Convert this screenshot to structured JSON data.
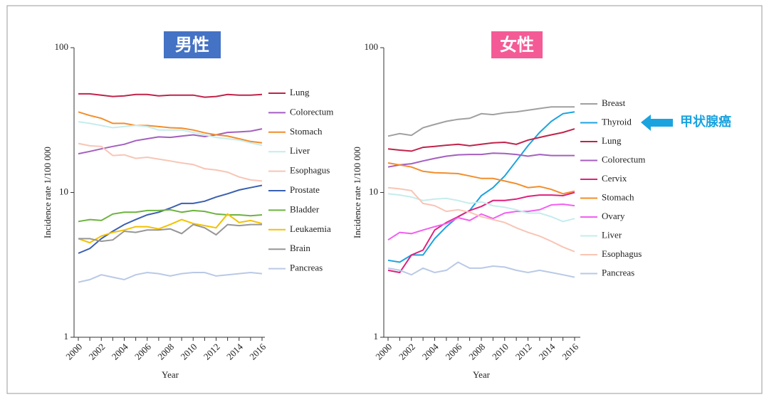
{
  "chart_data": [
    {
      "type": "line",
      "title": "男性",
      "title_color": "#4472c4",
      "log_scale": true,
      "y_label": "Incidence rate 1/100 000",
      "x_label": "Year",
      "x": [
        2000,
        2001,
        2002,
        2003,
        2004,
        2005,
        2006,
        2007,
        2008,
        2009,
        2010,
        2011,
        2012,
        2013,
        2014,
        2015,
        2016
      ],
      "xlim": [
        2000,
        2016
      ],
      "xticks": [
        2000,
        2002,
        2004,
        2006,
        2008,
        2010,
        2012,
        2014,
        2016
      ],
      "ylim": [
        1,
        100
      ],
      "yticks": [
        1,
        10,
        100
      ],
      "series": [
        {
          "name": "Lung",
          "color": "#c0234a",
          "values": [
            48,
            48,
            47,
            46,
            46.5,
            47.5,
            47.5,
            46.5,
            47,
            47,
            47,
            45.5,
            46,
            47.5,
            47,
            47,
            47.5
          ]
        },
        {
          "name": "Colorectum",
          "color": "#a45fbf",
          "values": [
            18.5,
            19.2,
            20,
            20.8,
            21.5,
            22.8,
            23.5,
            24.2,
            24,
            24.5,
            25,
            24.3,
            25,
            26,
            26.2,
            26.5,
            27.5
          ]
        },
        {
          "name": "Stomach",
          "color": "#f28e2b",
          "values": [
            36,
            34,
            32.5,
            30,
            30,
            29,
            29,
            28.5,
            28,
            27.8,
            27,
            25.8,
            25,
            24.5,
            23.5,
            22.5,
            22
          ]
        },
        {
          "name": "Liver",
          "color": "#c6ecec",
          "values": [
            30.8,
            30,
            29,
            28,
            28.5,
            29,
            28.5,
            27,
            27,
            27,
            26,
            25,
            24,
            23.5,
            23,
            22,
            21.2
          ]
        },
        {
          "name": "Esophagus",
          "color": "#f8c5b5",
          "values": [
            21.8,
            21,
            20.8,
            18,
            18.2,
            17.2,
            17.5,
            17,
            16.5,
            16,
            15.6,
            14.6,
            14.3,
            13.8,
            12.8,
            12.2,
            12
          ]
        },
        {
          "name": "Prostate",
          "color": "#3a5fb0",
          "values": [
            3.8,
            4.1,
            4.8,
            5.4,
            6,
            6.5,
            7,
            7.3,
            7.8,
            8.4,
            8.4,
            8.7,
            9.3,
            9.8,
            10.4,
            10.8,
            11.2
          ]
        },
        {
          "name": "Bladder",
          "color": "#6db33f",
          "values": [
            6.3,
            6.5,
            6.4,
            7.1,
            7.3,
            7.3,
            7.5,
            7.5,
            7.6,
            7.3,
            7.5,
            7.4,
            7.1,
            7,
            7,
            6.9,
            7
          ]
        },
        {
          "name": "Leukaemia",
          "color": "#f2c200",
          "values": [
            4.8,
            4.5,
            5,
            5.3,
            5.5,
            5.8,
            5.8,
            5.6,
            6,
            6.5,
            6.1,
            5.9,
            5.7,
            7.1,
            6.2,
            6.4,
            6.1
          ]
        },
        {
          "name": "Brain",
          "color": "#969696",
          "values": [
            4.8,
            4.8,
            4.6,
            4.7,
            5.4,
            5.3,
            5.5,
            5.5,
            5.6,
            5.2,
            6,
            5.7,
            5.1,
            6,
            5.9,
            6,
            6
          ]
        },
        {
          "name": "Pancreas",
          "color": "#b9c9e6",
          "values": [
            2.4,
            2.5,
            2.7,
            2.6,
            2.5,
            2.7,
            2.8,
            2.75,
            2.65,
            2.75,
            2.8,
            2.8,
            2.65,
            2.7,
            2.75,
            2.8,
            2.75
          ]
        }
      ]
    },
    {
      "type": "line",
      "title": "女性",
      "title_color": "#f45b96",
      "log_scale": true,
      "y_label": "Incidence rate 1/100 000",
      "x_label": "Year",
      "annotation": "甲状腺癌",
      "x": [
        2000,
        2001,
        2002,
        2003,
        2004,
        2005,
        2006,
        2007,
        2008,
        2009,
        2010,
        2011,
        2012,
        2013,
        2014,
        2015,
        2016
      ],
      "xlim": [
        2000,
        2016
      ],
      "xticks": [
        2000,
        2002,
        2004,
        2006,
        2008,
        2010,
        2012,
        2014,
        2016
      ],
      "ylim": [
        1,
        100
      ],
      "yticks": [
        1,
        10,
        100
      ],
      "series": [
        {
          "name": "Breast",
          "color": "#a0a0a0",
          "values": [
            24.5,
            25.5,
            24.8,
            28,
            29.5,
            31,
            32,
            32.5,
            35,
            34.5,
            35.5,
            36,
            37,
            38,
            39,
            39,
            39
          ]
        },
        {
          "name": "Thyroid",
          "color": "#1ba3e0",
          "values": [
            3.4,
            3.3,
            3.7,
            3.7,
            4.8,
            5.8,
            6.8,
            7.5,
            9.5,
            10.8,
            13,
            16.5,
            21,
            26,
            31,
            35,
            36
          ]
        },
        {
          "name": "Lung",
          "color": "#c0234a",
          "values": [
            20,
            19.6,
            19.3,
            20.5,
            20.8,
            21.2,
            21.5,
            21,
            21.5,
            22,
            22.2,
            21.5,
            23,
            24,
            25,
            26,
            27.5
          ]
        },
        {
          "name": "Colorectum",
          "color": "#a45fbf",
          "values": [
            15,
            15.5,
            15.8,
            16.5,
            17.2,
            17.8,
            18.2,
            18.3,
            18.3,
            18.7,
            18.6,
            18.3,
            17.8,
            18.3,
            18,
            18,
            18
          ]
        },
        {
          "name": "Cervix",
          "color": "#e0207a",
          "values": [
            2.9,
            2.8,
            3.7,
            4,
            5.5,
            6.2,
            6.8,
            7.5,
            8,
            8.8,
            8.8,
            9,
            9.4,
            9.6,
            9.6,
            9.5,
            10
          ]
        },
        {
          "name": "Stomach",
          "color": "#f28e2b",
          "values": [
            16,
            15.5,
            15,
            14,
            13.7,
            13.6,
            13.5,
            13,
            12.5,
            12.5,
            12,
            11.5,
            10.8,
            11,
            10.5,
            9.8,
            10.2
          ]
        },
        {
          "name": "Ovary",
          "color": "#f25ff2",
          "values": [
            4.7,
            5.3,
            5.2,
            5.5,
            5.8,
            6.1,
            6.7,
            6.4,
            7.1,
            6.6,
            7.2,
            7.4,
            7.4,
            7.6,
            8.2,
            8.3,
            8.1
          ]
        },
        {
          "name": "Liver",
          "color": "#c6ecec",
          "values": [
            9.8,
            9.6,
            9.3,
            8.8,
            9,
            9.1,
            8.8,
            8.4,
            8.6,
            8.1,
            7.9,
            7.6,
            7.2,
            7.2,
            6.8,
            6.3,
            6.6
          ]
        },
        {
          "name": "Esophagus",
          "color": "#f8c5b5",
          "values": [
            10.8,
            10.6,
            10.3,
            8.4,
            8.1,
            7.4,
            7.6,
            7.3,
            6.8,
            6.5,
            6.2,
            5.7,
            5.3,
            5,
            4.6,
            4.2,
            3.9
          ]
        },
        {
          "name": "Pancreas",
          "color": "#b9c9e6",
          "values": [
            3,
            2.9,
            2.7,
            3,
            2.8,
            2.9,
            3.3,
            3,
            3,
            3.1,
            3.05,
            2.9,
            2.8,
            2.9,
            2.8,
            2.7,
            2.6
          ]
        }
      ]
    }
  ]
}
